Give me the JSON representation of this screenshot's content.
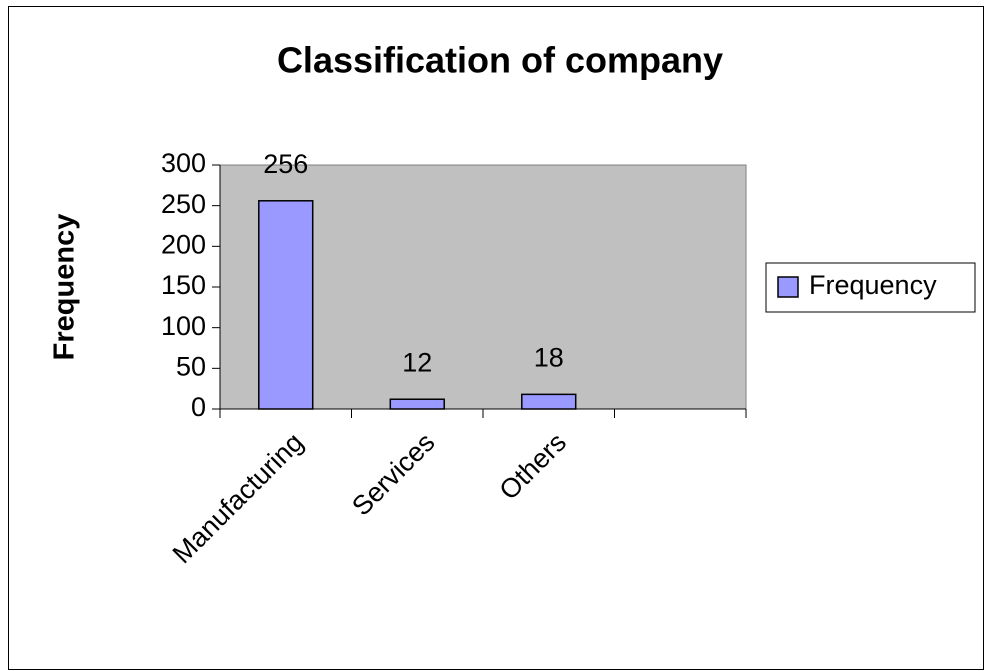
{
  "chart_data": {
    "type": "bar",
    "title": "Classification of company",
    "y_label": "Frequency",
    "categories": [
      "Manufacturing",
      "Services",
      "Others",
      null
    ],
    "series": [
      {
        "name": "Frequency",
        "color": "#9999ff",
        "values": [
          256,
          12,
          18,
          null
        ]
      }
    ],
    "ylim": [
      0,
      300
    ],
    "yticks": [
      0,
      50,
      100,
      150,
      200,
      250,
      300
    ],
    "grid": false,
    "legend": "right",
    "plot_background": "#c0c0c0"
  }
}
